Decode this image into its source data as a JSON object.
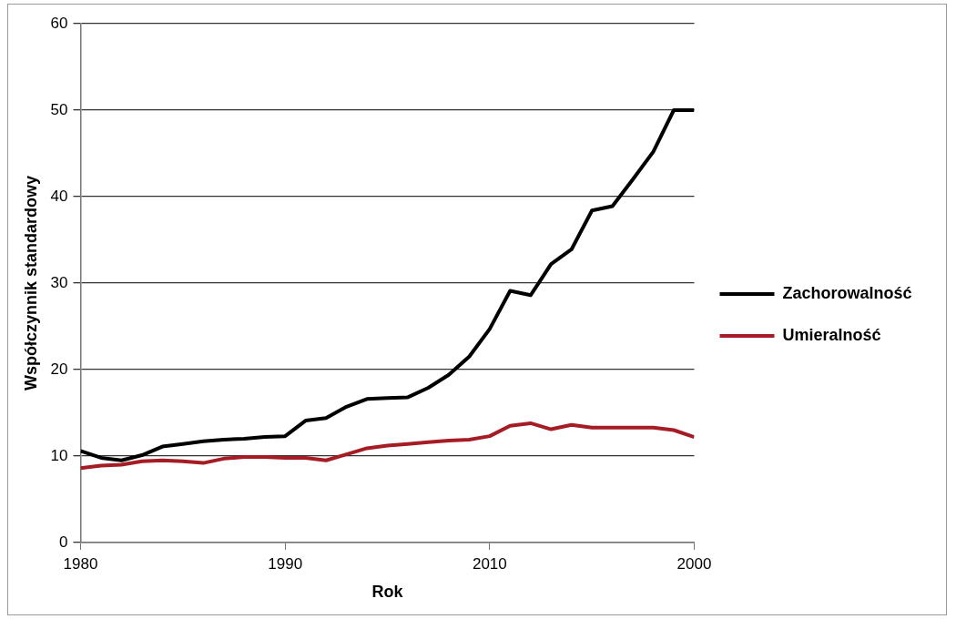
{
  "chart_data": {
    "type": "line",
    "xlabel": "Rok",
    "ylabel": "Współczynnik standardowy",
    "categories": [
      "1980",
      null,
      null,
      null,
      null,
      null,
      null,
      null,
      null,
      null,
      "1990",
      null,
      null,
      null,
      null,
      null,
      null,
      null,
      null,
      null,
      "2010",
      null,
      null,
      null,
      null,
      null,
      null,
      null,
      null,
      null,
      "2000"
    ],
    "ylim": [
      0,
      60
    ],
    "yticks": [
      0,
      10,
      20,
      30,
      40,
      50,
      60
    ],
    "grid": "y",
    "legend": "right",
    "marker": "none",
    "line_style": "solid",
    "series": [
      {
        "name": "Zachorowalność",
        "color": "#000000",
        "values": [
          10.6,
          9.8,
          9.5,
          10.1,
          11.1,
          11.4,
          11.7,
          11.9,
          12,
          12.2,
          12.3,
          14.1,
          14.4,
          15.7,
          16.6,
          16.7,
          16.8,
          17.9,
          19.4,
          21.5,
          24.7,
          29.1,
          28.6,
          32.2,
          33.9,
          38.4,
          38.9,
          42,
          45.2,
          50,
          50
        ]
      },
      {
        "name": "Umieralność",
        "color": "#a51c24",
        "values": [
          8.6,
          8.9,
          9,
          9.4,
          9.5,
          9.4,
          9.2,
          9.7,
          9.9,
          9.9,
          9.8,
          9.8,
          9.5,
          10.2,
          10.9,
          11.2,
          11.4,
          11.6,
          11.8,
          11.9,
          12.3,
          13.5,
          13.8,
          13.1,
          13.6,
          13.3,
          13.3,
          13.3,
          13.3,
          13,
          12.2
        ]
      }
    ]
  }
}
